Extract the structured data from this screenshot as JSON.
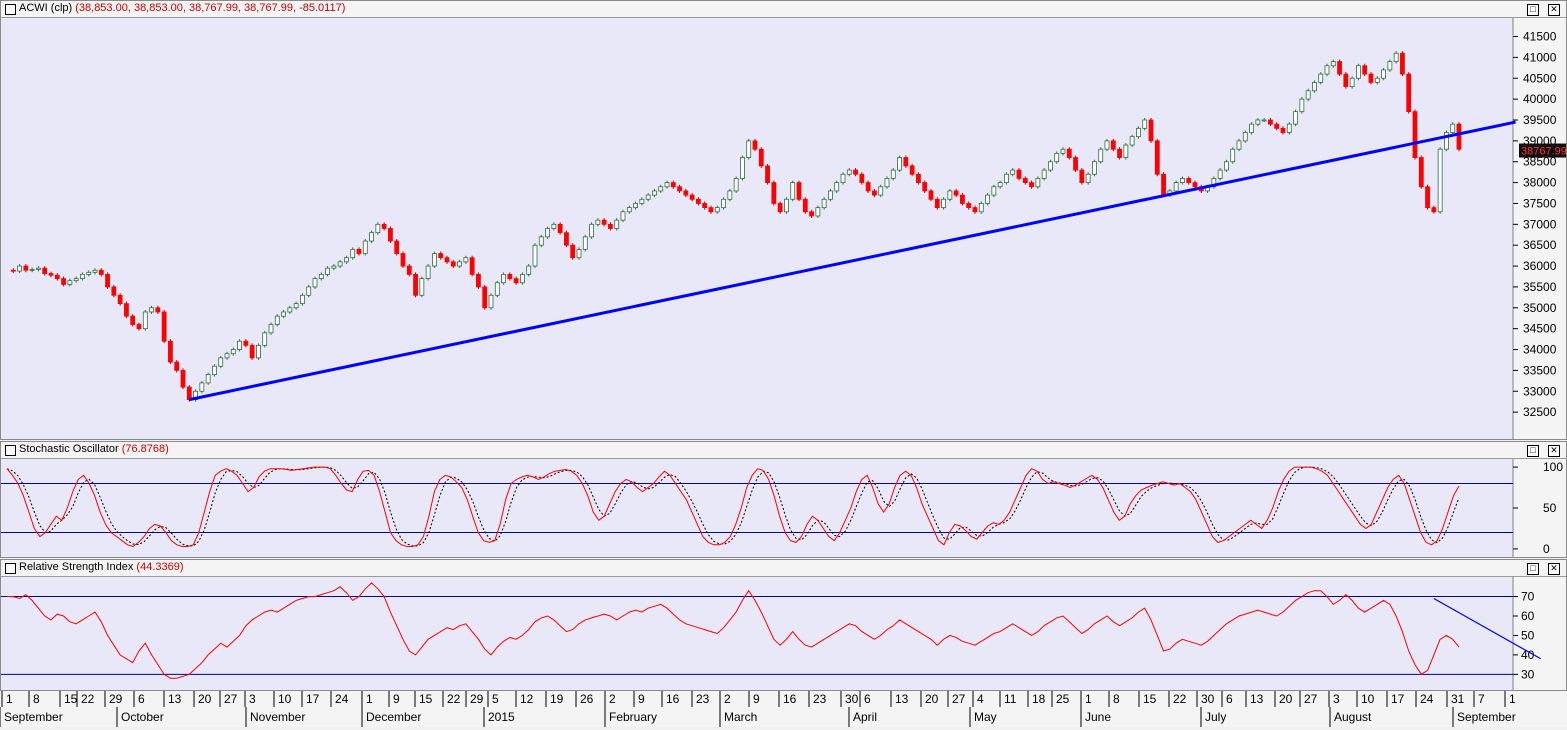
{
  "main_pane": {
    "symbol": "ACWI (clp)",
    "values": "(38,853.00, 38,853.00, 38,767.99, 38,767.99, -85.0117)",
    "last_price_label": "38767.99"
  },
  "stoch_pane": {
    "title": "Stochastic Oscillator",
    "value": "(76.8768)"
  },
  "rsi_pane": {
    "title": "Relative Strength Index",
    "value": "(44.3369)"
  },
  "window_buttons": {
    "restore": "□",
    "close": "✕"
  },
  "colors": {
    "background": "#e8e8f8",
    "up_candle": "#7fbf8f",
    "down_candle": "#ff0000",
    "trendline": "#0000ff",
    "indicator_line": "#ff0000",
    "signal_line": "#000000",
    "level_line": "#0000a0"
  },
  "chart_data": [
    {
      "type": "candlestick",
      "series": [
        {
          "name": "ACWI (clp)"
        }
      ],
      "ylim": [
        32000,
        41800
      ],
      "y_ticks": [
        32500,
        33000,
        33500,
        34000,
        34500,
        35000,
        35500,
        36000,
        36500,
        37000,
        37500,
        38000,
        38500,
        39000,
        39500,
        40000,
        40500,
        41000,
        41500
      ],
      "closes": [
        35900,
        35880,
        36000,
        35900,
        35920,
        35950,
        35820,
        35780,
        35700,
        35560,
        35650,
        35700,
        35800,
        35850,
        35900,
        35800,
        35500,
        35300,
        35100,
        34800,
        34600,
        34500,
        34900,
        35000,
        34900,
        34200,
        33700,
        33500,
        33100,
        32800,
        33000,
        33200,
        33400,
        33600,
        33800,
        33900,
        34000,
        34200,
        34100,
        33800,
        34100,
        34400,
        34600,
        34800,
        34900,
        35000,
        35100,
        35300,
        35500,
        35700,
        35800,
        35950,
        36000,
        36100,
        36200,
        36400,
        36300,
        36600,
        36800,
        37000,
        36900,
        36600,
        36300,
        36000,
        35800,
        35300,
        35700,
        36000,
        36300,
        36200,
        36100,
        36000,
        36100,
        36200,
        35800,
        35500,
        35000,
        35300,
        35600,
        35800,
        35700,
        35600,
        35800,
        36000,
        36500,
        36700,
        36900,
        37000,
        36800,
        36500,
        36200,
        36400,
        36700,
        37000,
        37100,
        37000,
        36900,
        37100,
        37300,
        37400,
        37500,
        37600,
        37700,
        37800,
        37900,
        38000,
        37900,
        37800,
        37700,
        37600,
        37500,
        37400,
        37300,
        37400,
        37600,
        37800,
        38100,
        38600,
        39000,
        38800,
        38400,
        38000,
        37500,
        37300,
        37600,
        38000,
        37600,
        37300,
        37200,
        37400,
        37600,
        37800,
        38000,
        38200,
        38300,
        38200,
        38000,
        37800,
        37700,
        37900,
        38100,
        38300,
        38600,
        38400,
        38200,
        38000,
        37800,
        37600,
        37400,
        37600,
        37800,
        37700,
        37500,
        37400,
        37300,
        37500,
        37700,
        37900,
        38000,
        38200,
        38300,
        38100,
        38000,
        37900,
        38100,
        38300,
        38500,
        38700,
        38800,
        38600,
        38300,
        38000,
        38200,
        38500,
        38800,
        39000,
        38800,
        38600,
        38900,
        39100,
        39300,
        39500,
        39000,
        38200,
        37700,
        37800,
        38000,
        38100,
        38000,
        37900,
        37800,
        37900,
        38100,
        38300,
        38500,
        38800,
        39000,
        39200,
        39400,
        39500,
        39500,
        39400,
        39300,
        39200,
        39400,
        39700,
        40000,
        40200,
        40400,
        40600,
        40800,
        40900,
        40600,
        40300,
        40500,
        40800,
        40600,
        40400,
        40500,
        40700,
        40900,
        41100,
        40600,
        39700,
        38600,
        37900,
        37400,
        37300,
        38800,
        39200,
        39400,
        38800
      ],
      "trendline": {
        "from": {
          "index": 29,
          "value": 32800
        },
        "to": {
          "index": 240,
          "value": 39450
        }
      }
    },
    {
      "type": "line",
      "title": "Stochastic Oscillator",
      "ylim": [
        -5,
        105
      ],
      "y_ticks": [
        0,
        50,
        100
      ],
      "levels": [
        80,
        20
      ],
      "k": [
        98,
        90,
        80,
        65,
        45,
        25,
        15,
        20,
        30,
        40,
        35,
        50,
        70,
        85,
        90,
        80,
        65,
        45,
        30,
        20,
        15,
        10,
        5,
        3,
        8,
        15,
        25,
        30,
        28,
        20,
        10,
        5,
        3,
        3,
        5,
        20,
        45,
        70,
        90,
        95,
        98,
        95,
        90,
        80,
        70,
        75,
        88,
        95,
        98,
        98,
        98,
        97,
        96,
        97,
        98,
        99,
        100,
        100,
        100,
        98,
        90,
        80,
        72,
        70,
        85,
        95,
        96,
        90,
        70,
        45,
        20,
        10,
        5,
        3,
        3,
        5,
        15,
        40,
        70,
        85,
        90,
        88,
        82,
        75,
        60,
        40,
        20,
        10,
        8,
        10,
        30,
        60,
        80,
        85,
        88,
        90,
        88,
        85,
        88,
        92,
        95,
        96,
        97,
        95,
        90,
        80,
        65,
        45,
        35,
        40,
        55,
        70,
        80,
        85,
        82,
        75,
        70,
        75,
        80,
        88,
        95,
        90,
        80,
        70,
        60,
        45,
        30,
        15,
        8,
        5,
        5,
        8,
        15,
        30,
        50,
        75,
        90,
        98,
        96,
        85,
        65,
        40,
        20,
        10,
        8,
        15,
        30,
        40,
        35,
        25,
        15,
        10,
        20,
        35,
        50,
        70,
        85,
        90,
        75,
        55,
        45,
        55,
        75,
        90,
        95,
        90,
        75,
        55,
        40,
        25,
        10,
        5,
        20,
        30,
        28,
        22,
        15,
        12,
        20,
        28,
        32,
        30,
        35,
        45,
        60,
        75,
        90,
        98,
        95,
        85,
        80,
        82,
        80,
        78,
        75,
        78,
        82,
        86,
        90,
        85,
        75,
        60,
        45,
        35,
        40,
        55,
        65,
        72,
        75,
        78,
        80,
        82,
        80,
        78,
        80,
        75,
        70,
        60,
        45,
        30,
        15,
        8,
        10,
        15,
        20,
        25,
        30,
        35,
        30,
        25,
        35,
        50,
        70,
        85,
        95,
        100,
        100,
        100,
        100,
        98,
        95,
        90,
        80,
        70,
        60,
        50,
        40,
        30,
        25,
        30,
        45,
        60,
        75,
        85,
        90,
        80,
        60,
        40,
        20,
        8,
        5,
        10,
        25,
        45,
        65,
        76.9
      ]
    },
    {
      "type": "line",
      "title": "Relative Strength Index",
      "ylim": [
        24,
        78
      ],
      "y_ticks": [
        30,
        40,
        50,
        60,
        70
      ],
      "levels": [
        70,
        30
      ],
      "values": [
        70,
        70,
        69,
        71,
        68,
        64,
        60,
        58,
        61,
        60,
        57,
        56,
        58,
        60,
        62,
        57,
        50,
        45,
        40,
        38,
        36,
        42,
        46,
        40,
        35,
        30,
        28,
        28,
        29,
        30,
        33,
        36,
        40,
        43,
        46,
        44,
        47,
        50,
        55,
        58,
        60,
        62,
        63,
        62,
        64,
        66,
        68,
        69,
        70,
        70,
        71,
        72,
        73,
        75,
        72,
        68,
        70,
        74,
        77,
        74,
        70,
        62,
        55,
        48,
        42,
        40,
        44,
        48,
        50,
        52,
        54,
        53,
        55,
        56,
        52,
        48,
        43,
        40,
        44,
        47,
        49,
        48,
        50,
        53,
        57,
        59,
        60,
        58,
        55,
        52,
        53,
        56,
        58,
        59,
        60,
        61,
        60,
        58,
        60,
        62,
        63,
        62,
        64,
        65,
        66,
        64,
        61,
        58,
        56,
        55,
        54,
        53,
        52,
        51,
        54,
        58,
        62,
        68,
        73,
        68,
        62,
        55,
        48,
        45,
        48,
        52,
        48,
        45,
        44,
        46,
        48,
        50,
        52,
        54,
        56,
        55,
        52,
        50,
        48,
        50,
        53,
        55,
        58,
        56,
        54,
        52,
        50,
        48,
        45,
        48,
        50,
        49,
        47,
        46,
        45,
        47,
        49,
        51,
        52,
        54,
        56,
        54,
        52,
        50,
        52,
        55,
        57,
        59,
        60,
        57,
        54,
        51,
        53,
        56,
        58,
        60,
        57,
        55,
        57,
        59,
        62,
        64,
        58,
        50,
        42,
        43,
        46,
        48,
        47,
        46,
        45,
        47,
        50,
        53,
        56,
        58,
        60,
        61,
        62,
        63,
        62,
        61,
        60,
        62,
        65,
        68,
        70,
        72,
        73,
        73,
        70,
        66,
        68,
        71,
        68,
        64,
        62,
        64,
        66,
        68,
        66,
        60,
        52,
        42,
        35,
        30,
        32,
        40,
        48,
        50,
        48,
        44
      ],
      "trendline": {
        "from": {
          "index": 227,
          "value": 69
        },
        "to": {
          "index": 244,
          "value": 38
        }
      }
    }
  ],
  "date_axis": {
    "day_ticks": [
      "1",
      "8",
      "15",
      "22",
      "29",
      "6",
      "13",
      "20",
      "27",
      "3",
      "10",
      "17",
      "24",
      "1",
      "9",
      "15",
      "22",
      "29",
      "5",
      "12",
      "19",
      "26",
      "2",
      "9",
      "16",
      "23",
      "2",
      "9",
      "16",
      "23",
      "30",
      "6",
      "13",
      "20",
      "27",
      "4",
      "11",
      "18",
      "25",
      "1",
      "8",
      "15",
      "22",
      "30",
      "6",
      "13",
      "20",
      "27",
      "3",
      "10",
      "17",
      "24",
      "31",
      "7",
      "1"
    ],
    "months": [
      "September",
      "October",
      "November",
      "December",
      "2015",
      "February",
      "March",
      "April",
      "May",
      "June",
      "July",
      "August",
      "September"
    ]
  }
}
